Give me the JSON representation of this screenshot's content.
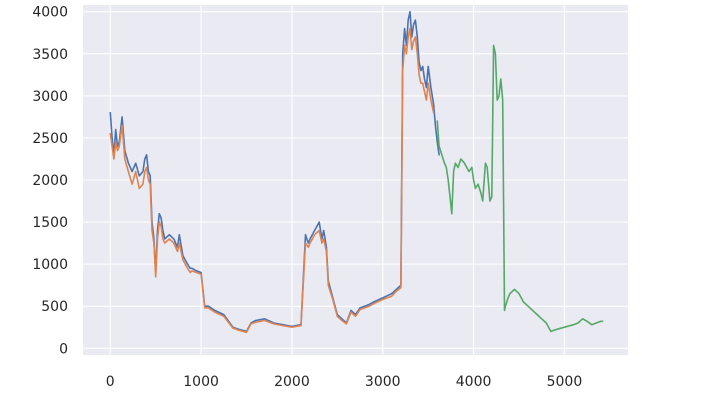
{
  "chart_data": {
    "type": "line",
    "title": "",
    "xlabel": "",
    "ylabel": "",
    "xlim": [
      -300,
      5700
    ],
    "ylim": [
      -80,
      4080
    ],
    "x_ticks": [
      0,
      1000,
      2000,
      3000,
      4000,
      5000
    ],
    "y_ticks": [
      0,
      500,
      1000,
      1500,
      2000,
      2500,
      3000,
      3500,
      4000
    ],
    "grid": true,
    "background": "#EAEAF2",
    "series": [
      {
        "color": "#4C72B0",
        "x": [
          0,
          20,
          40,
          60,
          80,
          100,
          130,
          160,
          200,
          240,
          280,
          320,
          360,
          380,
          400,
          420,
          440,
          460,
          480,
          500,
          520,
          540,
          560,
          580,
          600,
          650,
          700,
          740,
          760,
          800,
          850,
          880,
          900,
          950,
          1000,
          1040,
          1080,
          1150,
          1250,
          1350,
          1400,
          1500,
          1550,
          1600,
          1700,
          1800,
          1900,
          2000,
          2100,
          2150,
          2180,
          2200,
          2250,
          2300,
          2330,
          2350,
          2380,
          2400,
          2450,
          2500,
          2550,
          2600,
          2650,
          2700,
          2750,
          2800,
          2850,
          2900,
          3000,
          3100,
          3150,
          3200,
          3220,
          3240,
          3260,
          3280,
          3300,
          3320,
          3340,
          3360,
          3380,
          3400,
          3420,
          3440,
          3460,
          3480,
          3500,
          3530,
          3560,
          3580,
          3600,
          3620
        ],
        "y": [
          2800,
          2500,
          2300,
          2600,
          2400,
          2450,
          2750,
          2350,
          2200,
          2100,
          2200,
          2050,
          2100,
          2250,
          2300,
          2100,
          2050,
          1500,
          1300,
          900,
          1400,
          1600,
          1550,
          1400,
          1300,
          1350,
          1300,
          1200,
          1350,
          1100,
          1000,
          950,
          950,
          920,
          900,
          500,
          500,
          450,
          400,
          250,
          230,
          200,
          300,
          330,
          350,
          300,
          280,
          260,
          280,
          1350,
          1250,
          1300,
          1400,
          1500,
          1300,
          1400,
          1200,
          800,
          600,
          400,
          350,
          300,
          450,
          400,
          480,
          500,
          520,
          550,
          600,
          650,
          700,
          750,
          3500,
          3800,
          3600,
          3900,
          4000,
          3700,
          3850,
          3900,
          3700,
          3400,
          3300,
          3350,
          3200,
          3100,
          3350,
          3100,
          2900,
          2650,
          2450,
          2300
        ]
      },
      {
        "color": "#DD8452",
        "x": [
          0,
          20,
          40,
          60,
          80,
          100,
          130,
          160,
          200,
          240,
          280,
          320,
          360,
          380,
          400,
          420,
          440,
          460,
          480,
          500,
          520,
          540,
          560,
          580,
          600,
          650,
          700,
          740,
          760,
          800,
          850,
          880,
          900,
          950,
          1000,
          1040,
          1080,
          1150,
          1250,
          1350,
          1400,
          1500,
          1550,
          1600,
          1700,
          1800,
          1900,
          2000,
          2100,
          2150,
          2180,
          2200,
          2250,
          2300,
          2330,
          2350,
          2380,
          2400,
          2450,
          2500,
          2550,
          2600,
          2650,
          2700,
          2750,
          2800,
          2850,
          2900,
          3000,
          3100,
          3150,
          3200,
          3220,
          3240,
          3260,
          3280,
          3300,
          3320,
          3340,
          3360,
          3380,
          3400,
          3420,
          3440,
          3460,
          3480,
          3500,
          3530,
          3560
        ],
        "y": [
          2550,
          2400,
          2250,
          2450,
          2350,
          2400,
          2650,
          2250,
          2100,
          1950,
          2100,
          1900,
          1950,
          2100,
          2150,
          2000,
          1950,
          1400,
          1250,
          850,
          1300,
          1500,
          1450,
          1300,
          1250,
          1300,
          1250,
          1150,
          1250,
          1050,
          950,
          900,
          920,
          900,
          880,
          480,
          480,
          430,
          380,
          240,
          220,
          190,
          290,
          310,
          330,
          290,
          270,
          250,
          270,
          1250,
          1200,
          1250,
          1350,
          1400,
          1250,
          1300,
          1150,
          750,
          580,
          380,
          330,
          290,
          430,
          380,
          460,
          480,
          500,
          530,
          580,
          620,
          680,
          720,
          3300,
          3600,
          3500,
          3700,
          3800,
          3550,
          3650,
          3700,
          3500,
          3250,
          3150,
          3150,
          3050,
          2950,
          3150,
          2950,
          2800
        ]
      },
      {
        "color": "#55A868",
        "x": [
          3600,
          3620,
          3650,
          3680,
          3700,
          3720,
          3740,
          3760,
          3780,
          3800,
          3830,
          3860,
          3900,
          3950,
          3980,
          4000,
          4020,
          4050,
          4080,
          4100,
          4130,
          4150,
          4180,
          4200,
          4220,
          4240,
          4260,
          4280,
          4300,
          4320,
          4340,
          4350,
          4380,
          4400,
          4450,
          4500,
          4550,
          4600,
          4650,
          4700,
          4750,
          4800,
          4850,
          4900,
          5000,
          5100,
          5150,
          5200,
          5250,
          5300,
          5350,
          5400,
          5420
        ],
        "y": [
          2700,
          2400,
          2300,
          2200,
          2150,
          2000,
          1800,
          1600,
          2100,
          2200,
          2150,
          2250,
          2200,
          2100,
          2150,
          2000,
          1900,
          1950,
          1850,
          1750,
          2200,
          2150,
          1750,
          1800,
          3600,
          3500,
          2950,
          3000,
          3200,
          2950,
          450,
          500,
          600,
          650,
          700,
          650,
          550,
          500,
          450,
          400,
          350,
          300,
          200,
          220,
          250,
          280,
          300,
          350,
          320,
          280,
          300,
          320,
          320
        ]
      }
    ]
  }
}
